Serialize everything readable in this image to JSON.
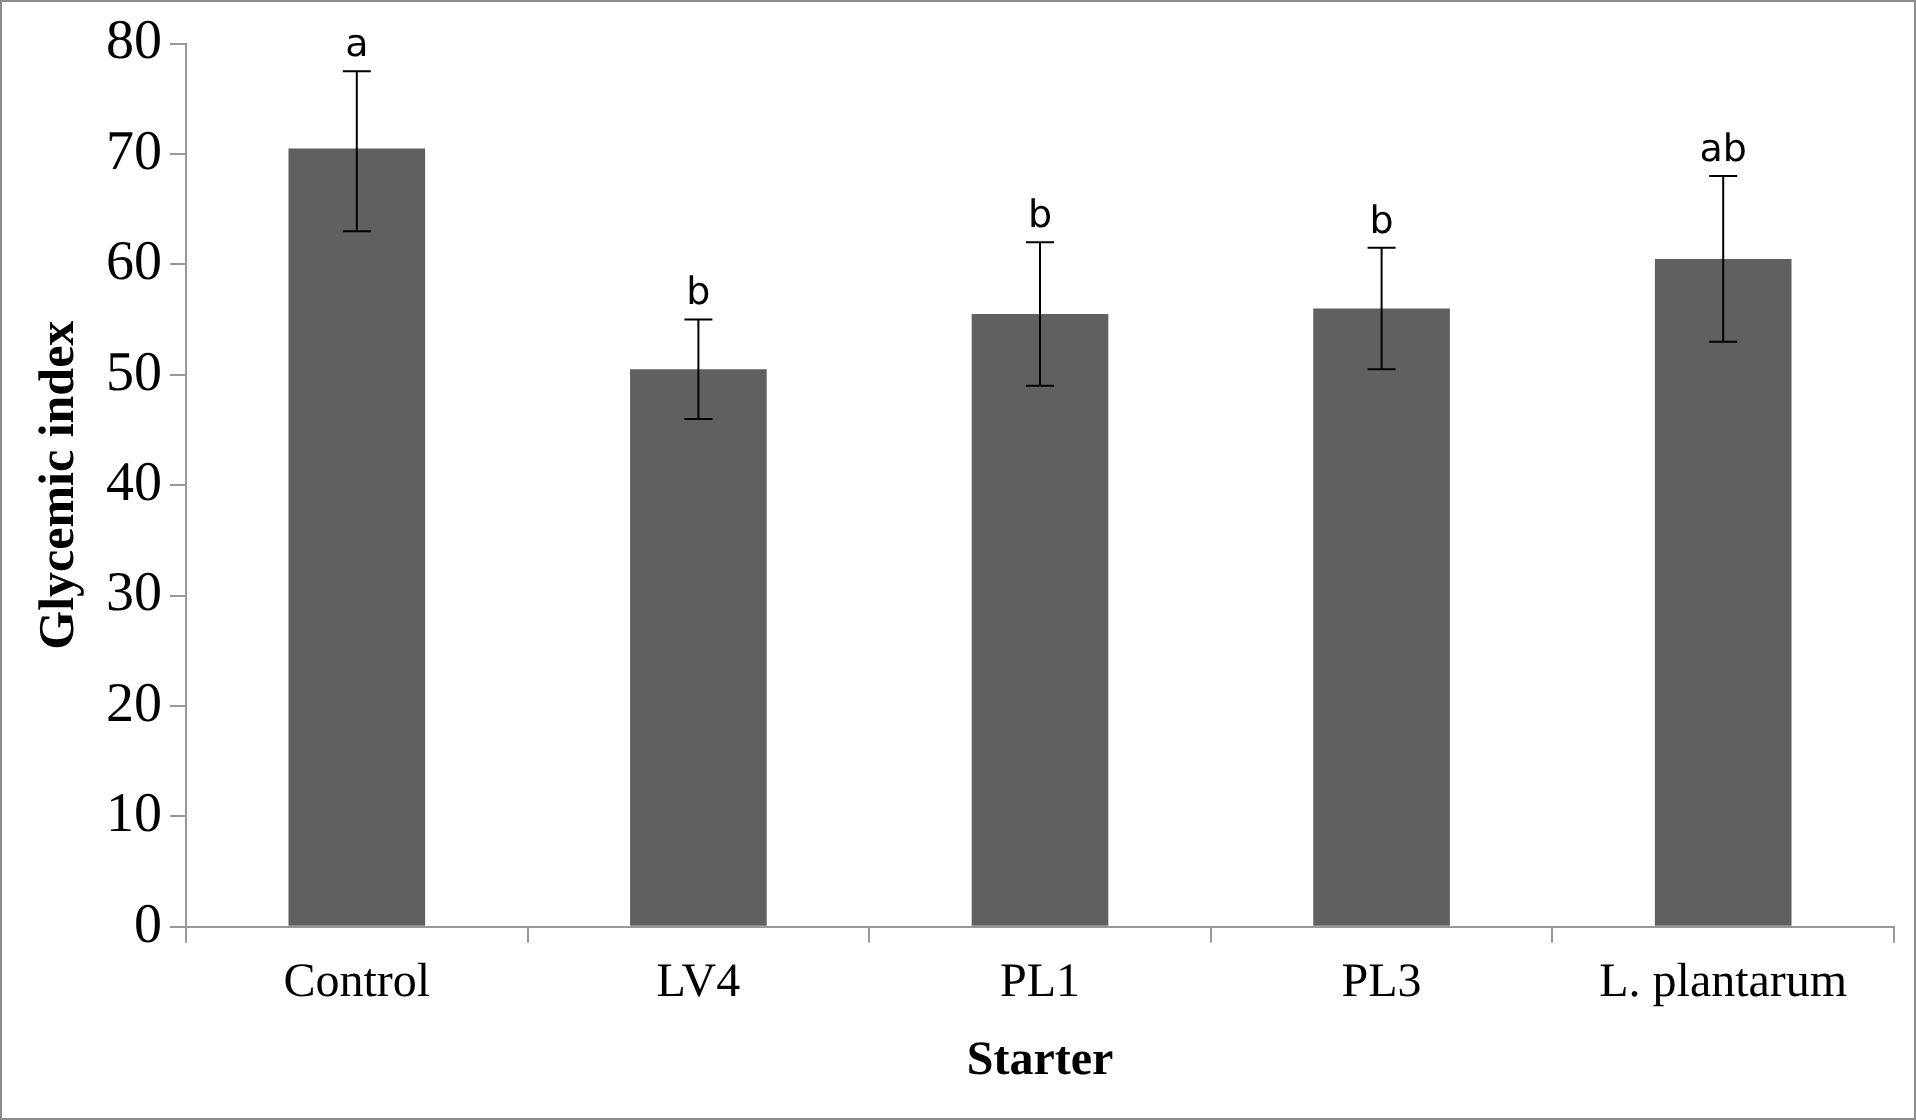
{
  "chart_data": {
    "type": "bar",
    "xlabel": "Starter",
    "ylabel": "Glycemic index",
    "categories": [
      "Control",
      "LV4",
      "PL1",
      "PL3",
      "L. plantarum"
    ],
    "values": [
      70.5,
      50.5,
      55.5,
      56.0,
      60.5
    ],
    "errors": [
      [
        63,
        77.5
      ],
      [
        46,
        55
      ],
      [
        49,
        62
      ],
      [
        50.5,
        61.5
      ],
      [
        53,
        68
      ]
    ],
    "color": "#606060",
    "ylim": [
      0,
      80
    ],
    "yticks": [
      0,
      10,
      20,
      30,
      40,
      50,
      60,
      70,
      80
    ],
    "grid": false,
    "legend": false,
    "annotations": [
      {
        "text": "a",
        "x": "Control",
        "y": 77.5
      },
      {
        "text": "b",
        "x": "LV4",
        "y": 55
      },
      {
        "text": "b",
        "x": "PL1",
        "y": 62
      },
      {
        "text": "b",
        "x": "PL3",
        "y": 61.5
      },
      {
        "text": "ab",
        "x": "L. plantarum",
        "y": 68
      }
    ]
  }
}
